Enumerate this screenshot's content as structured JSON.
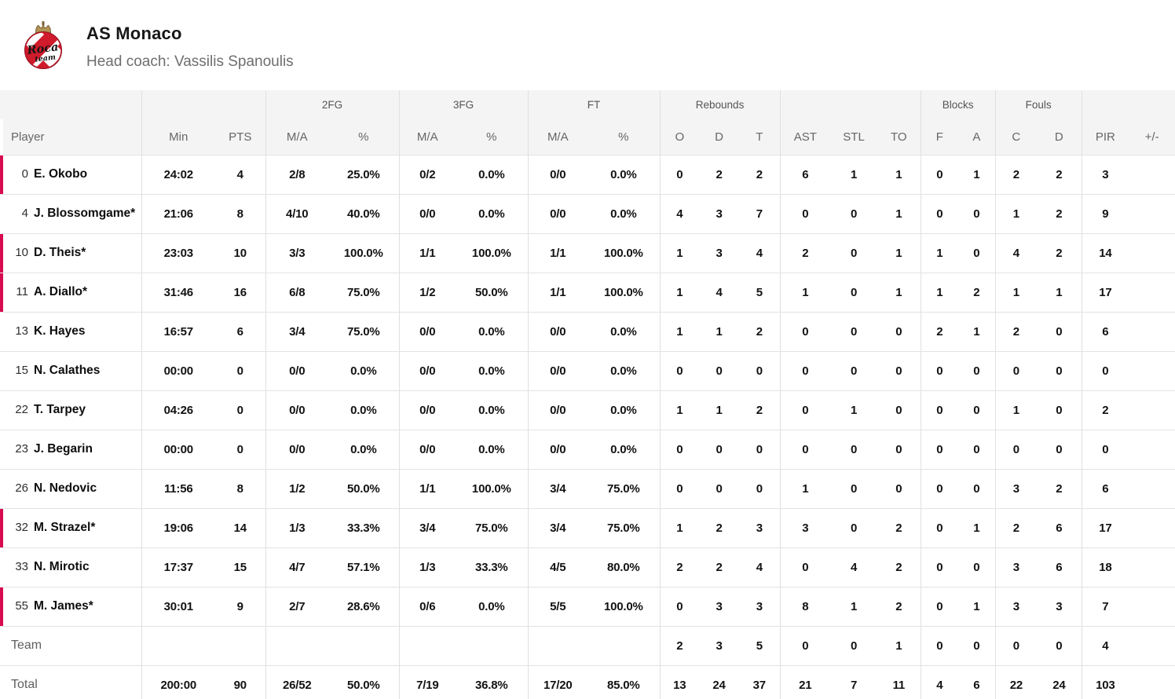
{
  "header": {
    "team_name": "AS Monaco",
    "coach_line": "Head coach: Vassilis Spanoulis",
    "logo_text_top": "Roca",
    "logo_text_bottom": "team"
  },
  "colors": {
    "on_court_indicator": "#d80b4f",
    "header_background": "#f4f4f4",
    "row_border": "#e3e3e3",
    "logo_red": "#cf1b2b",
    "logo_gold": "#b29255"
  },
  "table": {
    "group_headers": [
      {
        "label": "",
        "span": 1
      },
      {
        "label": "",
        "span": 2
      },
      {
        "label": "2FG",
        "span": 2
      },
      {
        "label": "3FG",
        "span": 2
      },
      {
        "label": "FT",
        "span": 2
      },
      {
        "label": "Rebounds",
        "span": 3
      },
      {
        "label": "",
        "span": 3
      },
      {
        "label": "Blocks",
        "span": 2
      },
      {
        "label": "Fouls",
        "span": 2
      },
      {
        "label": "",
        "span": 2
      }
    ],
    "columns": [
      "Player",
      "Min",
      "PTS",
      "M/A",
      "%",
      "M/A",
      "%",
      "M/A",
      "%",
      "O",
      "D",
      "T",
      "AST",
      "STL",
      "TO",
      "F",
      "A",
      "C",
      "D",
      "PIR",
      "+/-"
    ],
    "rows": [
      {
        "number": "0",
        "name": "E. Okobo",
        "on_court": true,
        "stats": [
          "24:02",
          "4",
          "2/8",
          "25.0%",
          "0/2",
          "0.0%",
          "0/0",
          "0.0%",
          "0",
          "2",
          "2",
          "6",
          "1",
          "1",
          "0",
          "1",
          "2",
          "2",
          "3",
          ""
        ]
      },
      {
        "number": "4",
        "name": "J. Blossomgame*",
        "on_court": false,
        "stats": [
          "21:06",
          "8",
          "4/10",
          "40.0%",
          "0/0",
          "0.0%",
          "0/0",
          "0.0%",
          "4",
          "3",
          "7",
          "0",
          "0",
          "1",
          "0",
          "0",
          "1",
          "2",
          "9",
          ""
        ]
      },
      {
        "number": "10",
        "name": "D. Theis*",
        "on_court": true,
        "stats": [
          "23:03",
          "10",
          "3/3",
          "100.0%",
          "1/1",
          "100.0%",
          "1/1",
          "100.0%",
          "1",
          "3",
          "4",
          "2",
          "0",
          "1",
          "1",
          "0",
          "4",
          "2",
          "14",
          ""
        ]
      },
      {
        "number": "11",
        "name": "A. Diallo*",
        "on_court": true,
        "stats": [
          "31:46",
          "16",
          "6/8",
          "75.0%",
          "1/2",
          "50.0%",
          "1/1",
          "100.0%",
          "1",
          "4",
          "5",
          "1",
          "0",
          "1",
          "1",
          "2",
          "1",
          "1",
          "17",
          ""
        ]
      },
      {
        "number": "13",
        "name": "K. Hayes",
        "on_court": false,
        "stats": [
          "16:57",
          "6",
          "3/4",
          "75.0%",
          "0/0",
          "0.0%",
          "0/0",
          "0.0%",
          "1",
          "1",
          "2",
          "0",
          "0",
          "0",
          "2",
          "1",
          "2",
          "0",
          "6",
          ""
        ]
      },
      {
        "number": "15",
        "name": "N. Calathes",
        "on_court": false,
        "stats": [
          "00:00",
          "0",
          "0/0",
          "0.0%",
          "0/0",
          "0.0%",
          "0/0",
          "0.0%",
          "0",
          "0",
          "0",
          "0",
          "0",
          "0",
          "0",
          "0",
          "0",
          "0",
          "0",
          ""
        ]
      },
      {
        "number": "22",
        "name": "T. Tarpey",
        "on_court": false,
        "stats": [
          "04:26",
          "0",
          "0/0",
          "0.0%",
          "0/0",
          "0.0%",
          "0/0",
          "0.0%",
          "1",
          "1",
          "2",
          "0",
          "1",
          "0",
          "0",
          "0",
          "1",
          "0",
          "2",
          ""
        ]
      },
      {
        "number": "23",
        "name": "J. Begarin",
        "on_court": false,
        "stats": [
          "00:00",
          "0",
          "0/0",
          "0.0%",
          "0/0",
          "0.0%",
          "0/0",
          "0.0%",
          "0",
          "0",
          "0",
          "0",
          "0",
          "0",
          "0",
          "0",
          "0",
          "0",
          "0",
          ""
        ]
      },
      {
        "number": "26",
        "name": "N. Nedovic",
        "on_court": false,
        "stats": [
          "11:56",
          "8",
          "1/2",
          "50.0%",
          "1/1",
          "100.0%",
          "3/4",
          "75.0%",
          "0",
          "0",
          "0",
          "1",
          "0",
          "0",
          "0",
          "0",
          "3",
          "2",
          "6",
          ""
        ]
      },
      {
        "number": "32",
        "name": "M. Strazel*",
        "on_court": true,
        "stats": [
          "19:06",
          "14",
          "1/3",
          "33.3%",
          "3/4",
          "75.0%",
          "3/4",
          "75.0%",
          "1",
          "2",
          "3",
          "3",
          "0",
          "2",
          "0",
          "1",
          "2",
          "6",
          "17",
          ""
        ]
      },
      {
        "number": "33",
        "name": "N. Mirotic",
        "on_court": false,
        "stats": [
          "17:37",
          "15",
          "4/7",
          "57.1%",
          "1/3",
          "33.3%",
          "4/5",
          "80.0%",
          "2",
          "2",
          "4",
          "0",
          "4",
          "2",
          "0",
          "0",
          "3",
          "6",
          "18",
          ""
        ]
      },
      {
        "number": "55",
        "name": "M. James*",
        "on_court": true,
        "stats": [
          "30:01",
          "9",
          "2/7",
          "28.6%",
          "0/6",
          "0.0%",
          "5/5",
          "100.0%",
          "0",
          "3",
          "3",
          "8",
          "1",
          "2",
          "0",
          "1",
          "3",
          "3",
          "7",
          ""
        ]
      }
    ],
    "summary_rows": [
      {
        "label": "Team",
        "stats": [
          "",
          "",
          "",
          "",
          "",
          "",
          "",
          "",
          "2",
          "3",
          "5",
          "0",
          "0",
          "1",
          "0",
          "0",
          "0",
          "0",
          "4",
          ""
        ]
      },
      {
        "label": "Total",
        "stats": [
          "200:00",
          "90",
          "26/52",
          "50.0%",
          "7/19",
          "36.8%",
          "17/20",
          "85.0%",
          "13",
          "24",
          "37",
          "21",
          "7",
          "11",
          "4",
          "6",
          "22",
          "24",
          "103",
          ""
        ]
      }
    ]
  }
}
